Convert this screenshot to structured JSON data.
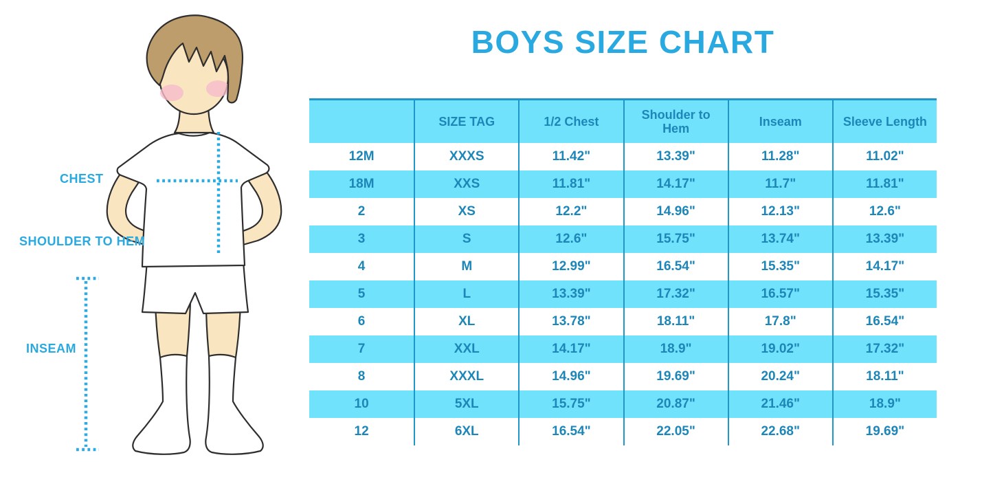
{
  "title": "BOYS SIZE CHART",
  "illustration": {
    "description": "cartoon boy with brown hair wearing white t-shirt, shorts and knee socks, with dotted measurement guide lines",
    "labels": {
      "chest": "CHEST",
      "shoulder_to_hem": "SHOULDER TO HEM",
      "inseam": "INSEAM"
    }
  },
  "colors": {
    "accent": "#29A9E0",
    "table_fill": "#71E2FB",
    "table_text": "#1D86B8",
    "table_line": "#1F96C8",
    "dotted_line": "#2AACE3",
    "skin": "#FAE5C1",
    "hair": "#BE9D6C",
    "blush": "#F5BBCA"
  },
  "chart_data": {
    "type": "table",
    "title": "BOYS SIZE CHART",
    "columns": [
      "",
      "SIZE TAG",
      "1/2 Chest",
      "Shoulder to Hem",
      "Inseam",
      "Sleeve Length"
    ],
    "rows": [
      [
        "12M",
        "XXXS",
        "11.42\"",
        "13.39\"",
        "11.28\"",
        "11.02\""
      ],
      [
        "18M",
        "XXS",
        "11.81\"",
        "14.17\"",
        "11.7\"",
        "11.81\""
      ],
      [
        "2",
        "XS",
        "12.2\"",
        "14.96\"",
        "12.13\"",
        "12.6\""
      ],
      [
        "3",
        "S",
        "12.6\"",
        "15.75\"",
        "13.74\"",
        "13.39\""
      ],
      [
        "4",
        "M",
        "12.99\"",
        "16.54\"",
        "15.35\"",
        "14.17\""
      ],
      [
        "5",
        "L",
        "13.39\"",
        "17.32\"",
        "16.57\"",
        "15.35\""
      ],
      [
        "6",
        "XL",
        "13.78\"",
        "18.11\"",
        "17.8\"",
        "16.54\""
      ],
      [
        "7",
        "XXL",
        "14.17\"",
        "18.9\"",
        "19.02\"",
        "17.32\""
      ],
      [
        "8",
        "XXXL",
        "14.96\"",
        "19.69\"",
        "20.24\"",
        "18.11\""
      ],
      [
        "10",
        "5XL",
        "15.75\"",
        "20.87\"",
        "21.46\"",
        "18.9\""
      ],
      [
        "12",
        "6XL",
        "16.54\"",
        "22.05\"",
        "22.68\"",
        "19.69\""
      ]
    ],
    "layout": {
      "units": "inches",
      "striping": "rows alternate white / light blue, first data row white",
      "header_background": "#71E2FB",
      "grid": "vertical column separators only, heavy top border, no row borders"
    }
  }
}
